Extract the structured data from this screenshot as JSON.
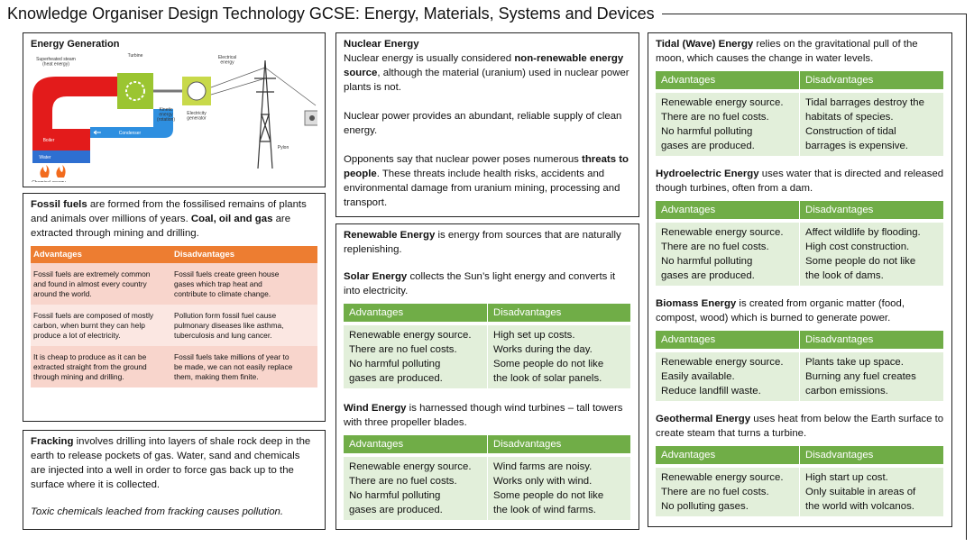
{
  "title": "Knowledge Organiser Design Technology GCSE: Energy, Materials, Systems and Devices",
  "energy_generation": {
    "heading": "Energy Generation",
    "labels": {
      "superheated_steam": [
        "Superheated steam",
        "(heat energy)"
      ],
      "turbine": [
        "Turbine"
      ],
      "electrical_energy": [
        "Electrical",
        "energy"
      ],
      "kinetic_energy": [
        "Kinetic",
        "energy",
        "(rotation)"
      ],
      "generator": [
        "Electricity",
        "generator"
      ],
      "boiler": [
        "Boiler"
      ],
      "water": [
        "Water"
      ],
      "condenser": [
        "Condenser"
      ],
      "pylon": [
        "Pylon"
      ],
      "chemical_energy": [
        "Chemical energy",
        "turned into heat"
      ]
    }
  },
  "fossil_fuels": {
    "intro": [
      {
        "text": "Fossil fuels",
        "bold": true
      },
      {
        "text": " are formed from the fossilised remains of plants and animals over millions of years. "
      },
      {
        "text": "Coal, oil and gas",
        "bold": true
      },
      {
        "text": " are extracted through mining and drilling."
      }
    ],
    "table": {
      "headers": [
        "Advantages",
        "Disadvantages"
      ],
      "rows": [
        [
          [
            "Fossil fuels are extremely common",
            "and found in almost every country",
            "around the world."
          ],
          [
            "Fossil fuels create green house",
            "gases which trap heat and",
            "contribute to climate change."
          ]
        ],
        [
          [
            "Fossil fuels are composed of mostly",
            "carbon, when burnt they can help",
            "produce a lot of electricity."
          ],
          [
            "Pollution form fossil fuel cause",
            "pulmonary diseases like asthma,",
            "tuberculosis and lung cancer."
          ]
        ],
        [
          [
            "It is cheap to produce as it can be",
            "extracted straight from the ground",
            "through mining and drilling."
          ],
          [
            "Fossil fuels take millions of year to",
            "be made, we can not easily replace",
            "them, making them finite."
          ]
        ]
      ]
    }
  },
  "fracking": {
    "intro": [
      {
        "text": "Fracking",
        "bold": true
      },
      {
        "text": " involves drilling into layers of shale rock deep in the earth to release pockets of gas. Water, sand and chemicals are injected into a well in order to force gas back up to the surface where it is collected."
      }
    ],
    "note": "Toxic chemicals leached from fracking causes pollution."
  },
  "nuclear": {
    "heading": "Nuclear Energy",
    "paragraphs": [
      [
        {
          "text": "Nuclear energy is usually considered "
        },
        {
          "text": "non-renewable energy source",
          "bold": true
        },
        {
          "text": ", although the material (uranium) used in nuclear power plants is not."
        }
      ],
      [
        {
          "text": "Nuclear power provides an abundant, reliable supply of clean energy."
        }
      ],
      [
        {
          "text": "Opponents say that nuclear power poses numerous "
        },
        {
          "text": "threats to people",
          "bold": true
        },
        {
          "text": ". These threats include health risks, accidents and environmental damage from uranium mining, processing and transport."
        }
      ]
    ]
  },
  "renewable": {
    "intro": [
      {
        "text": "Renewable Energy",
        "bold": true
      },
      {
        "text": " is energy from sources that are naturally replenishing."
      }
    ],
    "sources": [
      {
        "intro": [
          {
            "text": "Solar Energy",
            "bold": true
          },
          {
            "text": " collects the Sun’s light energy and converts it into electricity."
          }
        ],
        "table": {
          "headers": [
            "Advantages",
            "Disadvantages"
          ],
          "rows": [
            [
              [
                "Renewable energy source.",
                "There are no fuel costs.",
                "No harmful polluting",
                "gases are produced."
              ],
              [
                "High set up costs.",
                "Works during the day.",
                "Some people do not like",
                "the look of solar panels."
              ]
            ]
          ]
        }
      },
      {
        "intro": [
          {
            "text": "Wind Energy",
            "bold": true
          },
          {
            "text": " is harnessed though wind turbines – tall towers with three propeller blades."
          }
        ],
        "table": {
          "headers": [
            "Advantages",
            "Disadvantages"
          ],
          "rows": [
            [
              [
                "Renewable energy source.",
                "There are no fuel costs.",
                "No harmful polluting",
                "gases are produced."
              ],
              [
                "Wind farms are noisy.",
                "Works only with wind.",
                "Some people do not like",
                "the look of wind farms."
              ]
            ]
          ]
        }
      }
    ]
  },
  "other_renewables": [
    {
      "intro": [
        {
          "text": "Tidal (Wave) Energy",
          "bold": true
        },
        {
          "text": " relies on the gravitational pull of the moon, which causes the change in water levels."
        }
      ],
      "table": {
        "headers": [
          "Advantages",
          "Disadvantages"
        ],
        "rows": [
          [
            [
              "Renewable energy source.",
              "There are no fuel costs.",
              "No harmful polluting",
              "gases are produced."
            ],
            [
              "Tidal barrages destroy the",
              "habitats of species.",
              "Construction of tidal",
              "barrages is expensive."
            ]
          ]
        ]
      }
    },
    {
      "intro": [
        {
          "text": "Hydroelectric Energy",
          "bold": true
        },
        {
          "text": " uses water that is directed and released though turbines, often from a dam."
        }
      ],
      "table": {
        "headers": [
          "Advantages",
          "Disadvantages"
        ],
        "rows": [
          [
            [
              "Renewable energy source.",
              "There are no fuel costs.",
              "No harmful polluting",
              "gases are produced."
            ],
            [
              "Affect wildlife by flooding.",
              "High cost construction.",
              "Some people do not like",
              "the look of dams."
            ]
          ]
        ]
      }
    },
    {
      "intro": [
        {
          "text": "Biomass Energy",
          "bold": true
        },
        {
          "text": " is created from organic matter (food, compost, wood) which is burned to generate power."
        }
      ],
      "table": {
        "headers": [
          "Advantages",
          "Disadvantages"
        ],
        "rows": [
          [
            [
              "Renewable energy source.",
              "Easily available.",
              "Reduce landfill waste."
            ],
            [
              "Plants take up space.",
              "Burning any fuel creates",
              "carbon emissions."
            ]
          ]
        ]
      }
    },
    {
      "intro": [
        {
          "text": "Geothermal Energy",
          "bold": true
        },
        {
          "text": " uses heat from below the Earth surface to create steam that turns a turbine."
        }
      ],
      "table": {
        "headers": [
          "Advantages",
          "Disadvantages"
        ],
        "rows": [
          [
            [
              "Renewable energy source.",
              "There are no fuel costs.",
              "No polluting gases."
            ],
            [
              "High start up cost.",
              "Only suitable in areas of",
              "the world with volcanos."
            ]
          ]
        ]
      }
    }
  ]
}
